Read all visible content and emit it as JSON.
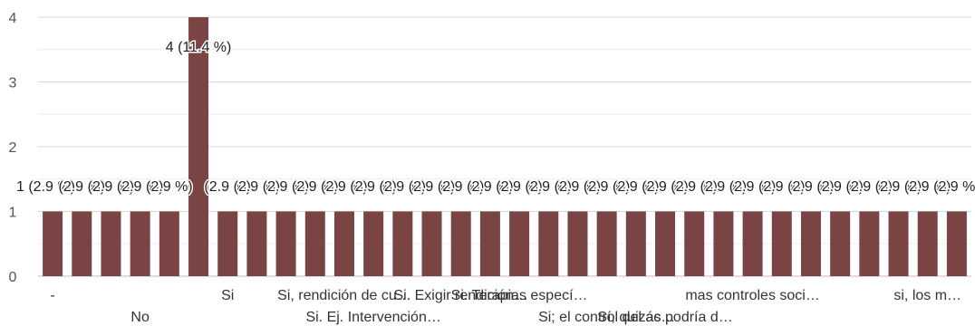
{
  "chart_data": {
    "type": "bar",
    "ylim": [
      0,
      4
    ],
    "yticks": [
      0,
      1,
      2,
      3,
      4
    ],
    "grid": true,
    "bar_color": "#7a4444",
    "categories": [
      "-",
      "",
      "",
      "No",
      "",
      "",
      "Si",
      "",
      "",
      "",
      "Si, rendición de cu…",
      "Si. Ej. Intervención…",
      "",
      "",
      "Si. Exigir rendición…",
      "",
      "Si. Terapias especí…",
      "",
      "",
      "Si; el control del ac…",
      "",
      "Sí, quizás podría d…",
      "",
      "",
      "mas controles soci…",
      "",
      "",
      "",
      "",
      "",
      "si, los m…",
      ""
    ],
    "values": [
      1,
      1,
      1,
      1,
      1,
      4,
      1,
      1,
      1,
      1,
      1,
      1,
      1,
      1,
      1,
      1,
      1,
      1,
      1,
      1,
      1,
      1,
      1,
      1,
      1,
      1,
      1,
      1,
      1,
      1,
      1,
      1
    ],
    "data_labels": [
      "1 (2.9 %)",
      "(2.9 %)",
      "(2.9 %)",
      "(2.9 %)",
      "(2.9 %)",
      "4 (11.4 %)",
      "(2.9 %)",
      "(2.9 %)",
      "(2.9 %)",
      "(2.9 %)",
      "(2.9 %)",
      "(2.9 %)",
      "(2.9 %)",
      "(2.9 %)",
      "(2.9 %)",
      "(2.9 %)",
      "(2.9 %)",
      "(2.9 %)",
      "(2.9 %)",
      "(2.9 %)",
      "(2.9 %)",
      "(2.9 %)",
      "(2.9 %)",
      "(2.9 %)",
      "(2.9 %)",
      "(2.9 %)",
      "(2.9 %)",
      "(2.9 %)",
      "(2.9 %)",
      "(2.9 %)",
      "(2.9 %)",
      "(2.9 %)"
    ]
  }
}
